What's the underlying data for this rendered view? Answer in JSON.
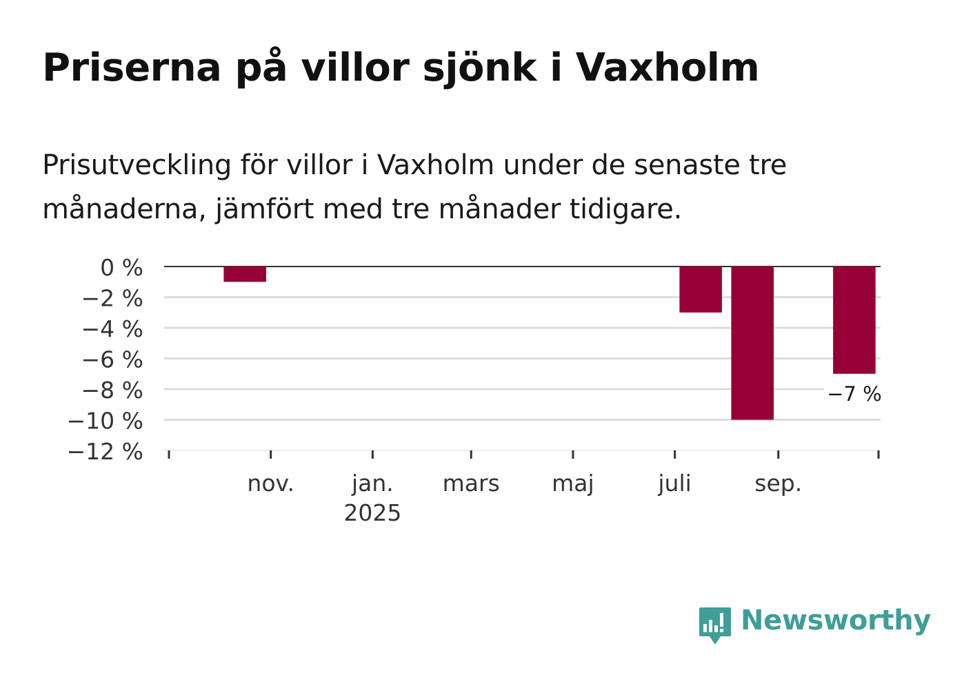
{
  "title": "Priserna på villor sjönk i Vaxholm",
  "subtitle": "Prisutveckling för villor i Vaxholm under de senaste tre månaderna, jämfört med tre månader tidigare.",
  "brand": {
    "name": "Newsworthy",
    "color": "#3f9e97",
    "icon": "newsworthy-logo-icon"
  },
  "colors": {
    "bar": "#960036",
    "grid": "#dcdcdc",
    "baseline": "#333333",
    "text": "#333333"
  },
  "chart_data": {
    "type": "bar",
    "title": "Priserna på villor sjönk i Vaxholm",
    "xlabel": "",
    "ylabel": "",
    "ylim": [
      -12,
      0
    ],
    "yticks": [
      0,
      -2,
      -4,
      -6,
      -8,
      -10,
      -12
    ],
    "ytick_labels": [
      "0 %",
      "−2 %",
      "−4 %",
      "−6 %",
      "−8 %",
      "−10 %",
      "−12 %"
    ],
    "grid": true,
    "x_range": [
      "2024-09-01",
      "2025-10-31"
    ],
    "x_ticks": [
      {
        "date": "2024-09-01",
        "label": "",
        "sublabel": ""
      },
      {
        "date": "2024-11-01",
        "label": "nov.",
        "sublabel": ""
      },
      {
        "date": "2025-01-01",
        "label": "jan.",
        "sublabel": "2025"
      },
      {
        "date": "2025-03-01",
        "label": "mars",
        "sublabel": ""
      },
      {
        "date": "2025-05-01",
        "label": "maj",
        "sublabel": ""
      },
      {
        "date": "2025-07-01",
        "label": "juli",
        "sublabel": ""
      },
      {
        "date": "2025-09-01",
        "label": "sep.",
        "sublabel": ""
      },
      {
        "date": "2025-10-31",
        "label": "",
        "sublabel": ""
      }
    ],
    "series": [
      {
        "name": "Prisutveckling",
        "points": [
          {
            "date": "2024-10",
            "value": -1
          },
          {
            "date": "2025-07",
            "value": -3
          },
          {
            "date": "2025-08",
            "value": -10
          },
          {
            "date": "2025-10",
            "value": -7
          }
        ]
      }
    ],
    "annotations": [
      {
        "date": "2025-10",
        "value": -7,
        "text": "−7 %"
      }
    ]
  }
}
